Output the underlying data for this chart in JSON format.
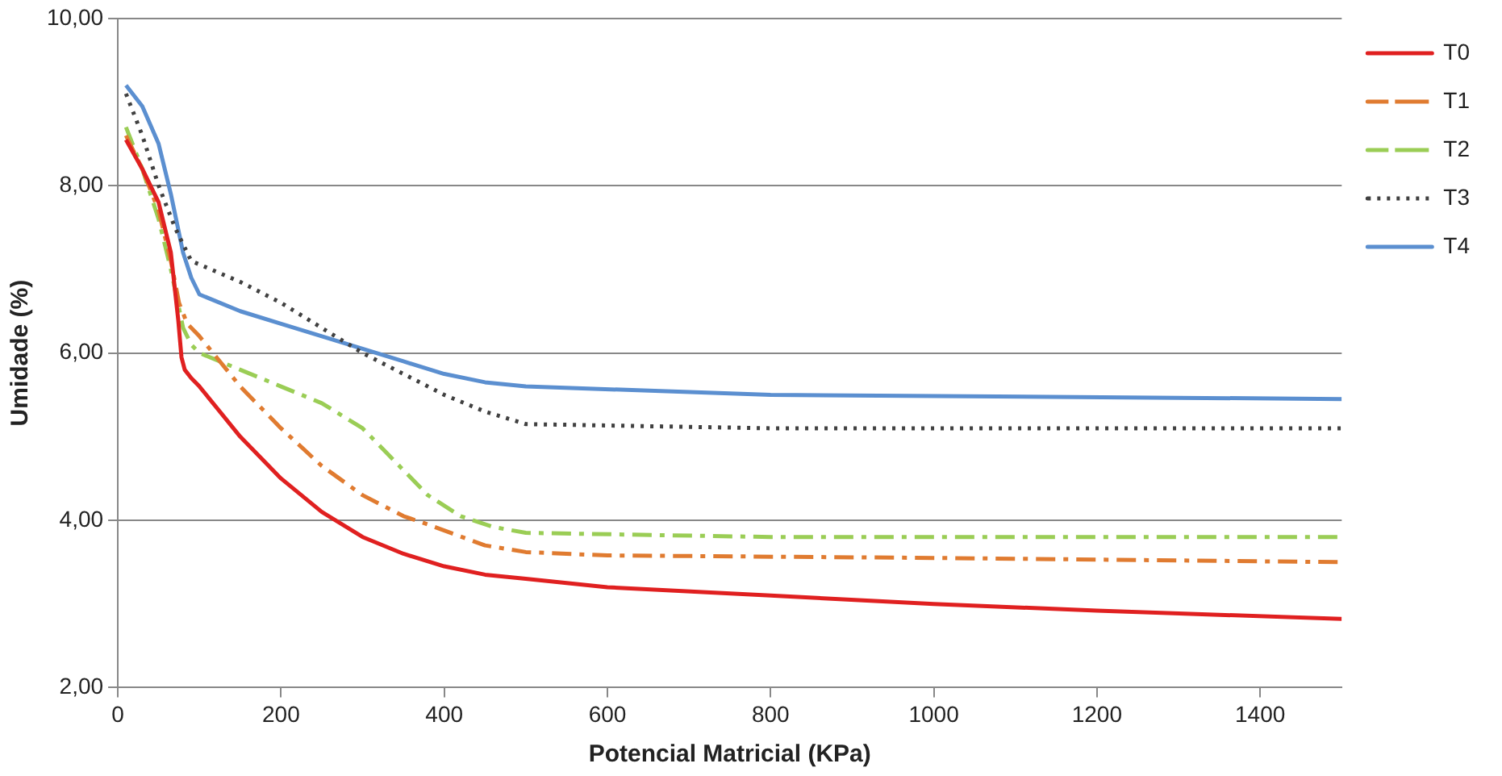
{
  "chart_data": {
    "type": "line",
    "xlabel": "Potencial Matricial (KPa)",
    "ylabel": "Umidade (%)",
    "xlim": [
      0,
      1500
    ],
    "xticks": [
      0,
      200,
      400,
      600,
      800,
      1000,
      1200,
      1400
    ],
    "ylim": [
      2,
      10
    ],
    "yticks": [
      {
        "value": 2,
        "label": "2,00"
      },
      {
        "value": 4,
        "label": "4,00"
      },
      {
        "value": 6,
        "label": "6,00"
      },
      {
        "value": 8,
        "label": "8,00"
      },
      {
        "value": 10,
        "label": "10,00"
      }
    ],
    "grid": "y",
    "legend": "right",
    "marker": "none",
    "series": [
      {
        "name": "T0",
        "color": "#e02020",
        "line_style": "solid",
        "x": [
          10,
          30,
          50,
          65,
          74,
          78,
          82,
          90,
          100,
          150,
          200,
          250,
          300,
          350,
          400,
          450,
          500,
          600,
          800,
          1000,
          1200,
          1500
        ],
        "values": [
          8.55,
          8.2,
          7.8,
          7.2,
          6.4,
          5.95,
          5.8,
          5.7,
          5.6,
          5.0,
          4.5,
          4.1,
          3.8,
          3.6,
          3.45,
          3.35,
          3.3,
          3.2,
          3.1,
          3.0,
          2.92,
          2.82
        ]
      },
      {
        "name": "T1",
        "color": "#e07b30",
        "line_style": "dashed",
        "x": [
          10,
          30,
          50,
          65,
          75,
          85,
          100,
          150,
          200,
          250,
          300,
          350,
          380,
          450,
          500,
          600,
          1000,
          1500
        ],
        "values": [
          8.6,
          8.2,
          7.7,
          7.1,
          6.6,
          6.35,
          6.2,
          5.6,
          5.1,
          4.65,
          4.3,
          4.05,
          3.95,
          3.7,
          3.62,
          3.58,
          3.55,
          3.5
        ]
      },
      {
        "name": "T2",
        "color": "#9acd55",
        "line_style": "dashed",
        "x": [
          10,
          30,
          50,
          65,
          80,
          90,
          100,
          150,
          200,
          250,
          300,
          330,
          350,
          380,
          420,
          460,
          500,
          800,
          1500
        ],
        "values": [
          8.7,
          8.2,
          7.6,
          7.0,
          6.3,
          6.1,
          6.0,
          5.8,
          5.6,
          5.4,
          5.1,
          4.8,
          4.6,
          4.3,
          4.05,
          3.92,
          3.85,
          3.8,
          3.8
        ]
      },
      {
        "name": "T3",
        "color": "#404040",
        "line_style": "dotted",
        "x": [
          10,
          30,
          50,
          70,
          90,
          150,
          200,
          250,
          300,
          350,
          400,
          450,
          500,
          800,
          1500
        ],
        "values": [
          9.1,
          8.6,
          8.0,
          7.5,
          7.1,
          6.85,
          6.6,
          6.3,
          6.0,
          5.75,
          5.5,
          5.3,
          5.15,
          5.1,
          5.1
        ]
      },
      {
        "name": "T4",
        "color": "#5b8fd0",
        "line_style": "solid",
        "x": [
          10,
          30,
          50,
          65,
          80,
          90,
          100,
          150,
          200,
          250,
          300,
          350,
          400,
          450,
          500,
          800,
          1500
        ],
        "values": [
          9.2,
          8.95,
          8.5,
          7.9,
          7.2,
          6.9,
          6.7,
          6.5,
          6.35,
          6.2,
          6.05,
          5.9,
          5.75,
          5.65,
          5.6,
          5.5,
          5.45
        ]
      }
    ]
  }
}
